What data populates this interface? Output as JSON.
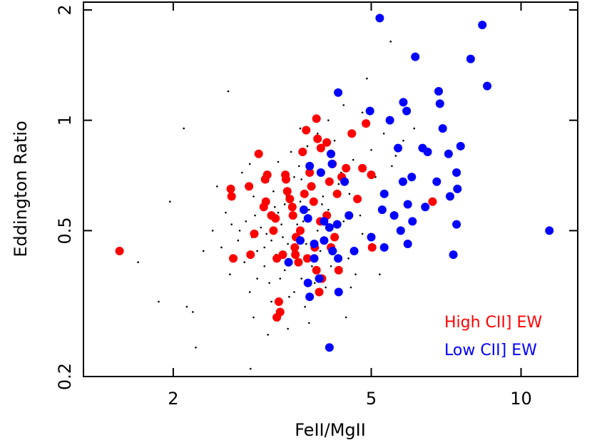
{
  "chart_data": {
    "type": "scatter",
    "x_label": "FeII/MgII",
    "y_label": "Eddington Ratio",
    "xlog": true,
    "ylog": true,
    "xlim": [
      1.32,
      13
    ],
    "ylim": [
      0.2,
      2.1
    ],
    "xticks": [
      2,
      5,
      10
    ],
    "yticks": [
      0.2,
      0.5,
      1,
      2
    ],
    "legend": "lower right",
    "series": [
      {
        "color": "#000000",
        "x": [
          1.97,
          1.7,
          1.87,
          2.13,
          2.19,
          2.22,
          2.1,
          2.58,
          2.86,
          5.47,
          2.4,
          2.5,
          2.55,
          2.6,
          2.7,
          2.75,
          2.8,
          2.85,
          2.9,
          2.95,
          3.0,
          3.05,
          3.1,
          3.12,
          3.15,
          3.2,
          3.22,
          3.25,
          3.3,
          3.35,
          3.38,
          3.4,
          3.42,
          3.45,
          3.5,
          3.52,
          3.55,
          3.6,
          3.62,
          3.65,
          3.7,
          3.72,
          3.75,
          3.8,
          3.85,
          3.9,
          3.95,
          4.0,
          4.05,
          4.1,
          4.2,
          4.3,
          4.4,
          4.5,
          4.6,
          4.7,
          4.8,
          5.0,
          5.2,
          5.5,
          5.8,
          6.1,
          4.9,
          2.65,
          2.78,
          2.92,
          3.08,
          3.18,
          3.28,
          3.48,
          3.58,
          3.68,
          3.78,
          3.88,
          3.98,
          4.15,
          4.35,
          4.55,
          4.75,
          2.45,
          2.72,
          3.02,
          3.32,
          3.62,
          3.92,
          4.22,
          4.52,
          5.3,
          5.6,
          2.3,
          2.9,
          3.4,
          3.9,
          4.4,
          4.8,
          3.1,
          3.6,
          4.1,
          2.85,
          3.45,
          3.75,
          3.35,
          3.05,
          2.95,
          3.55,
          3.85,
          4.25,
          4.65,
          5.1,
          2.62,
          3.15,
          4.0,
          3.7,
          3.25,
          2.88,
          4.45,
          3.5
        ],
        "y": [
          0.6,
          0.41,
          0.32,
          0.31,
          0.3,
          0.24,
          0.95,
          1.2,
          0.21,
          1.64,
          0.5,
          0.45,
          0.56,
          0.38,
          0.47,
          0.72,
          0.53,
          0.34,
          0.62,
          0.44,
          0.51,
          0.4,
          0.68,
          0.36,
          0.47,
          0.58,
          0.43,
          0.77,
          0.52,
          0.39,
          0.62,
          0.46,
          0.33,
          0.55,
          0.7,
          0.49,
          0.42,
          0.6,
          0.37,
          0.53,
          0.46,
          0.85,
          0.57,
          0.4,
          0.66,
          0.5,
          0.44,
          0.62,
          0.35,
          0.57,
          0.48,
          0.67,
          0.53,
          0.42,
          0.78,
          0.6,
          0.49,
          0.83,
          0.38,
          0.75,
          0.88,
          0.95,
          1.3,
          0.61,
          0.41,
          0.55,
          0.49,
          0.64,
          0.37,
          0.44,
          0.75,
          0.31,
          0.54,
          0.45,
          0.59,
          0.4,
          0.72,
          0.35,
          0.55,
          0.66,
          0.5,
          0.58,
          0.48,
          0.69,
          0.39,
          0.88,
          0.63,
          0.92,
          0.8,
          0.44,
          0.29,
          0.27,
          0.92,
          1.1,
          1.05,
          0.26,
          0.95,
          1.0,
          0.76,
          0.82,
          0.28,
          0.59,
          0.45,
          0.37,
          0.52,
          0.36,
          0.44,
          0.38,
          0.7,
          0.52,
          0.32,
          0.47,
          0.63,
          0.56,
          0.48,
          0.29,
          0.34
        ]
      },
      {
        "name": "High CII] EW",
        "color": "#ff0000",
        "x": [
          1.56,
          2.61,
          2.62,
          2.64,
          2.84,
          2.86,
          2.91,
          2.97,
          3.04,
          3.07,
          3.09,
          3.15,
          3.18,
          3.21,
          3.23,
          3.26,
          3.28,
          3.23,
          3.06,
          3.32,
          3.36,
          3.37,
          3.39,
          3.43,
          3.47,
          3.48,
          3.51,
          3.52,
          3.53,
          3.57,
          3.6,
          3.64,
          3.67,
          3.7,
          3.72,
          3.76,
          3.79,
          3.83,
          3.85,
          3.88,
          3.9,
          3.95,
          3.98,
          3.93,
          3.96,
          4.07,
          4.07,
          4.12,
          4.15,
          4.18,
          4.22,
          4.27,
          4.3,
          4.36,
          4.45,
          4.57,
          4.69,
          4.8,
          4.88,
          5.0,
          5.02,
          6.64,
          3.88
        ],
        "y": [
          0.44,
          0.65,
          0.62,
          0.42,
          0.66,
          0.43,
          0.49,
          0.81,
          0.58,
          0.6,
          0.71,
          0.55,
          0.5,
          0.54,
          0.42,
          0.32,
          0.3,
          0.29,
          0.69,
          0.43,
          0.71,
          0.69,
          0.64,
          0.61,
          0.58,
          0.55,
          0.45,
          0.43,
          0.48,
          0.41,
          0.5,
          0.82,
          0.63,
          0.94,
          0.42,
          0.72,
          0.66,
          0.6,
          0.45,
          0.39,
          0.89,
          0.53,
          0.37,
          0.34,
          0.84,
          0.87,
          0.55,
          0.68,
          0.45,
          0.76,
          0.48,
          0.63,
          0.39,
          0.7,
          0.74,
          0.92,
          0.61,
          0.74,
          0.98,
          0.71,
          0.45,
          0.6,
          1.01
        ]
      },
      {
        "name": "Low CII] EW",
        "color": "#0000ff",
        "x": [
          5.2,
          8.36,
          6.13,
          7.92,
          8.55,
          4.29,
          6.83,
          5.8,
          5.89,
          4.97,
          5.45,
          6.87,
          6.96,
          5.66,
          6.34,
          6.49,
          7.15,
          7.56,
          4.15,
          4.17,
          3.76,
          3.96,
          4.42,
          6.03,
          5.79,
          7.42,
          6.77,
          7.45,
          5.31,
          7.2,
          6.42,
          5.92,
          5.26,
          5.56,
          4.51,
          7.42,
          6.05,
          5.73,
          3.66,
          3.73,
          4.02,
          4.27,
          4.12,
          5.0,
          4.02,
          3.6,
          3.84,
          5.31,
          5.92,
          4.62,
          4.18,
          3.84,
          3.41,
          4.29,
          3.93,
          3.73,
          3.76,
          4.3,
          7.31,
          11.4,
          4.12
        ],
        "y": [
          1.9,
          1.82,
          1.49,
          1.47,
          1.24,
          1.19,
          1.2,
          1.12,
          1.06,
          1.06,
          1.0,
          1.11,
          0.95,
          0.84,
          0.84,
          0.82,
          0.81,
          0.85,
          0.81,
          0.76,
          0.75,
          0.72,
          0.68,
          0.7,
          0.68,
          0.72,
          0.68,
          0.65,
          0.63,
          0.62,
          0.58,
          0.59,
          0.57,
          0.55,
          0.55,
          0.52,
          0.53,
          0.5,
          0.57,
          0.54,
          0.53,
          0.52,
          0.51,
          0.48,
          0.47,
          0.47,
          0.46,
          0.45,
          0.46,
          0.44,
          0.44,
          0.42,
          0.41,
          0.42,
          0.37,
          0.36,
          0.33,
          0.34,
          0.43,
          0.5,
          0.24
        ]
      }
    ]
  }
}
